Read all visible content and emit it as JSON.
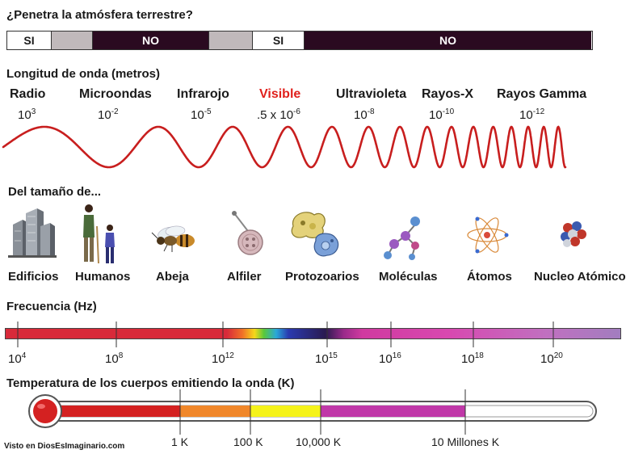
{
  "atmosphere": {
    "heading": "¿Penetra la atmósfera terrestre?",
    "segments": [
      {
        "label": "SI",
        "color": "#ffffff",
        "text_color": "#1a1a1a"
      },
      {
        "label": "",
        "color": "#c0b9bb",
        "text_color": "#1a1a1a"
      },
      {
        "label": "NO",
        "color": "#2a0a20",
        "text_color": "#ffffff"
      },
      {
        "label": "",
        "color": "#c0b9bb",
        "text_color": "#1a1a1a"
      },
      {
        "label": "SI",
        "color": "#ffffff",
        "text_color": "#1a1a1a"
      },
      {
        "label": "NO",
        "color": "#2a0a20",
        "text_color": "#ffffff"
      }
    ]
  },
  "wavelength": {
    "heading": "Longitud de onda (metros)",
    "bands": [
      {
        "name": "Radio",
        "prefix": "",
        "base": "10",
        "exp": "3",
        "color": "#1a1a1a"
      },
      {
        "name": "Microondas",
        "prefix": "",
        "base": "10",
        "exp": "-2",
        "color": "#1a1a1a"
      },
      {
        "name": "Infrarojo",
        "prefix": "",
        "base": "10",
        "exp": "-5",
        "color": "#1a1a1a"
      },
      {
        "name": "Visible",
        "prefix": ".5 x ",
        "base": "10",
        "exp": "-6",
        "color": "#e0201c"
      },
      {
        "name": "Ultravioleta",
        "prefix": "",
        "base": "10",
        "exp": "-8",
        "color": "#1a1a1a"
      },
      {
        "name": "Rayos-X",
        "prefix": "",
        "base": "10",
        "exp": "-10",
        "color": "#1a1a1a"
      },
      {
        "name": "Rayos Gamma",
        "prefix": "",
        "base": "10",
        "exp": "-12",
        "color": "#1a1a1a"
      }
    ],
    "wave_color": "#c81e1e"
  },
  "size": {
    "heading": "Del tamaño de...",
    "objects": [
      {
        "label": "Edificios",
        "icon": "buildings-icon"
      },
      {
        "label": "Humanos",
        "icon": "humans-icon"
      },
      {
        "label": "Abeja",
        "icon": "bee-icon"
      },
      {
        "label": "Alfiler",
        "icon": "pin-icon"
      },
      {
        "label": "Protozoarios",
        "icon": "protozoa-icon"
      },
      {
        "label": "Moléculas",
        "icon": "molecule-icon"
      },
      {
        "label": "Átomos",
        "icon": "atom-icon"
      },
      {
        "label": "Nucleo Atómico",
        "icon": "nucleus-icon"
      }
    ]
  },
  "frequency": {
    "heading": "Frecuencia (Hz)",
    "ticks": [
      {
        "base": "10",
        "exp": "4"
      },
      {
        "base": "10",
        "exp": "8"
      },
      {
        "base": "10",
        "exp": "12"
      },
      {
        "base": "10",
        "exp": "15"
      },
      {
        "base": "10",
        "exp": "16"
      },
      {
        "base": "10",
        "exp": "18"
      },
      {
        "base": "10",
        "exp": "20"
      }
    ]
  },
  "temperature": {
    "heading": "Temperatura de los cuerpos emitiendo la onda (K)",
    "labels": [
      "1 K",
      "100 K",
      "10,000 K",
      "10 Millones K"
    ],
    "colors": [
      "#d42121",
      "#f0872a",
      "#f5f31a",
      "#c038a8",
      "#ffffff"
    ]
  },
  "credit": "Visto en DiosEsImaginario.com"
}
